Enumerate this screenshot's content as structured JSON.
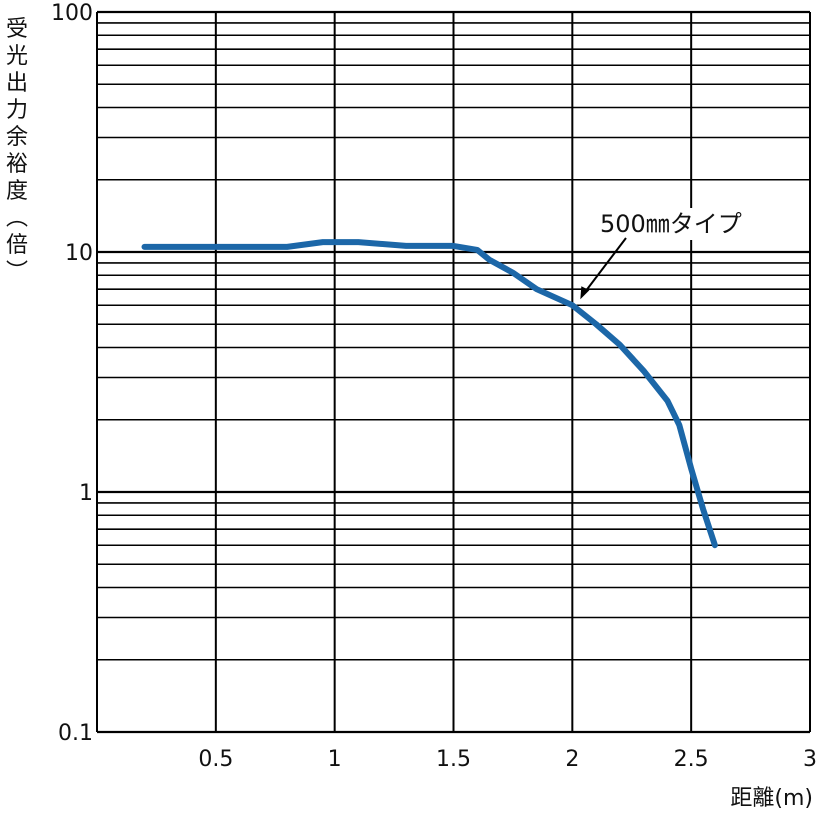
{
  "chart_data": {
    "type": "line",
    "ylabel": "受光出力余裕度(倍)",
    "xlabel": "距離(m)",
    "xlim": [
      0,
      3
    ],
    "ylim": [
      0.1,
      100
    ],
    "y_scale": "log",
    "grid": true,
    "x_ticks": [
      {
        "value": 0.5,
        "label": "0.5"
      },
      {
        "value": 1,
        "label": "1"
      },
      {
        "value": 1.5,
        "label": "1.5"
      },
      {
        "value": 2,
        "label": "2"
      },
      {
        "value": 2.5,
        "label": "2.5"
      },
      {
        "value": 3,
        "label": "3"
      }
    ],
    "y_ticks": [
      {
        "value": 0.1,
        "label": "0.1"
      },
      {
        "value": 1,
        "label": "1"
      },
      {
        "value": 10,
        "label": "10"
      },
      {
        "value": 100,
        "label": "100"
      }
    ],
    "series": [
      {
        "name": "500㎜タイプ",
        "color": "#1c67a8",
        "x": [
          0.2,
          0.5,
          0.8,
          0.95,
          1.1,
          1.3,
          1.5,
          1.6,
          1.65,
          1.75,
          1.85,
          2.0,
          2.1,
          2.2,
          2.3,
          2.4,
          2.45,
          2.5,
          2.55,
          2.6
        ],
        "y": [
          10.5,
          10.5,
          10.5,
          11,
          11,
          10.6,
          10.6,
          10.2,
          9.3,
          8.2,
          7.0,
          6.0,
          5.0,
          4.1,
          3.2,
          2.4,
          1.9,
          1.25,
          0.85,
          0.6
        ]
      }
    ],
    "annotations": [
      {
        "text": "500㎜タイプ",
        "target_x": 2.0,
        "target_y": 6.0
      }
    ]
  }
}
